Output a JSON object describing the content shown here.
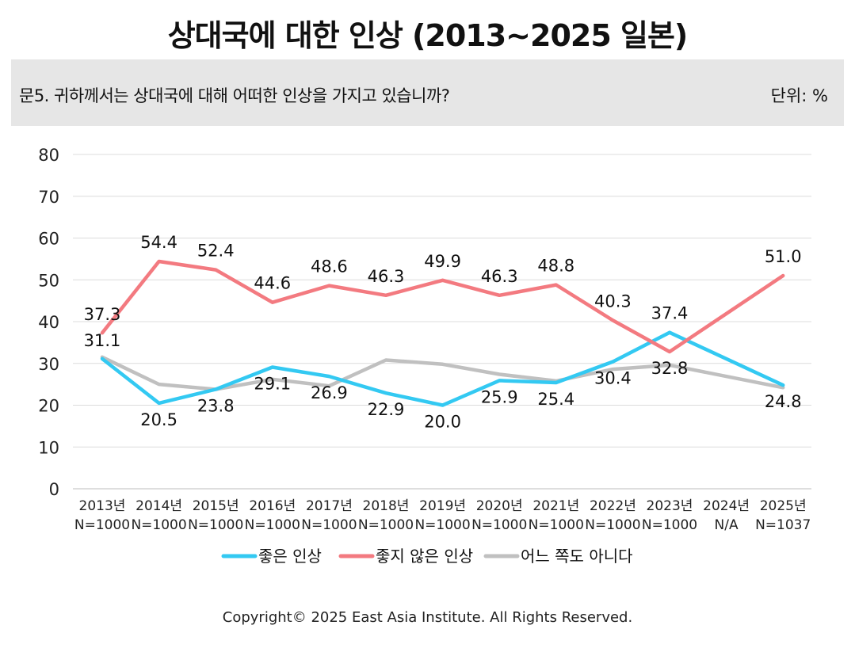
{
  "header": {
    "title": "상대국에 대한 인상 (2013~2025 일본)",
    "question": "문5. 귀하께서는 상대국에 대해 어떠한 인상을 가지고 있습니까?",
    "unit": "단위: %"
  },
  "footer": {
    "copyright": "Copyright© 2025 East Asia Institute. All Rights Reserved."
  },
  "chart_data": {
    "type": "line",
    "title": "상대국에 대한 인상 (2013~2025 일본)",
    "categories": [
      "2013년",
      "2014년",
      "2015년",
      "2016년",
      "2017년",
      "2018년",
      "2019년",
      "2020년",
      "2021년",
      "2022년",
      "2023년",
      "2024년",
      "2025년"
    ],
    "category_sublabels": [
      "N=1000",
      "N=1000",
      "N=1000",
      "N=1000",
      "N=1000",
      "N=1000",
      "N=1000",
      "N=1000",
      "N=1000",
      "N=1000",
      "N=1000",
      "N/A",
      "N=1037"
    ],
    "ylim": [
      0,
      80
    ],
    "yticks": [
      0,
      10,
      20,
      30,
      40,
      50,
      60,
      70,
      80
    ],
    "grid": true,
    "legend_position": "bottom",
    "series": [
      {
        "name": "좋은 인상",
        "color": "#33c9f2",
        "labeled": true,
        "values": [
          31.1,
          20.5,
          23.8,
          29.1,
          26.9,
          22.9,
          20.0,
          25.9,
          25.4,
          30.4,
          37.4,
          null,
          24.8
        ],
        "labels": [
          "31.1",
          "20.5",
          "23.8",
          "29.1",
          "26.9",
          "22.9",
          "20.0",
          "25.9",
          "25.4",
          "30.4",
          "37.4",
          "",
          "24.8"
        ]
      },
      {
        "name": "좋지 않은 인상",
        "color": "#f37a80",
        "labeled": true,
        "values": [
          37.3,
          54.4,
          52.4,
          44.6,
          48.6,
          46.3,
          49.9,
          46.3,
          48.8,
          40.3,
          32.8,
          null,
          51.0
        ],
        "labels": [
          "37.3",
          "54.4",
          "52.4",
          "44.6",
          "48.6",
          "46.3",
          "49.9",
          "46.3",
          "48.8",
          "40.3",
          "32.8",
          "",
          "51.0"
        ]
      },
      {
        "name": "어느 쪽도 아니다",
        "color": "#c0c0c0",
        "labeled": false,
        "values": [
          31.5,
          25.0,
          23.8,
          26.2,
          24.6,
          30.8,
          29.8,
          27.4,
          25.8,
          28.6,
          29.6,
          null,
          24.2
        ]
      }
    ]
  }
}
